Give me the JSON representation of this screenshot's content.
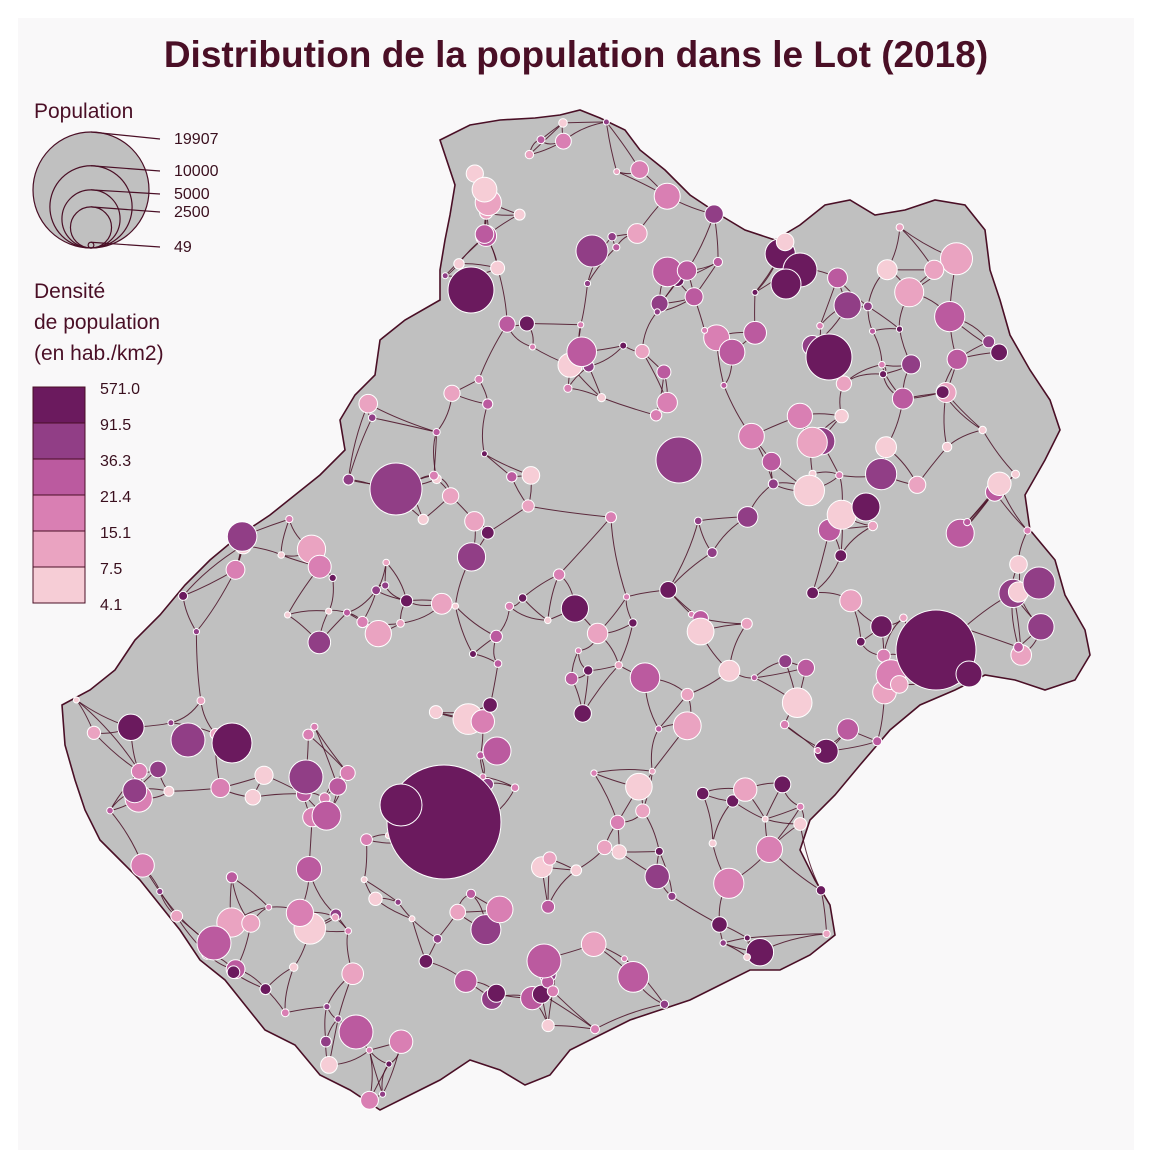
{
  "title": "Distribution de la population dans le Lot (2018)",
  "legend_population": {
    "title": "Population",
    "values": [
      19907,
      10000,
      5000,
      2500,
      49
    ],
    "labels": [
      "19907",
      "10000",
      "5000",
      "2500",
      "49"
    ]
  },
  "legend_density": {
    "title_lines": [
      "Densité",
      "de population",
      "(en hab./km2)"
    ],
    "breaks": [
      "571.0",
      "91.5",
      "36.3",
      "21.4",
      "15.1",
      "7.5",
      "4.1"
    ],
    "colors": [
      "#6b1a5e",
      "#913e86",
      "#bb5a9f",
      "#d97fb3",
      "#eaa3c1",
      "#f6cdd6"
    ]
  },
  "colors": {
    "land": "#c0c0c0",
    "border": "#4a0f26",
    "background": "#f9f8f9",
    "symbol_stroke": "#ffffff"
  },
  "chart_data": {
    "type": "proportional-symbol-map",
    "region": "Lot",
    "year": 2018,
    "size_variable": "Population",
    "color_variable": "Densité de population (en hab./km2)",
    "population_legend_values": [
      19907,
      10000,
      5000,
      2500,
      49
    ],
    "density_class_breaks": [
      4.1,
      7.5,
      15.1,
      21.4,
      36.3,
      91.5,
      571.0
    ]
  }
}
